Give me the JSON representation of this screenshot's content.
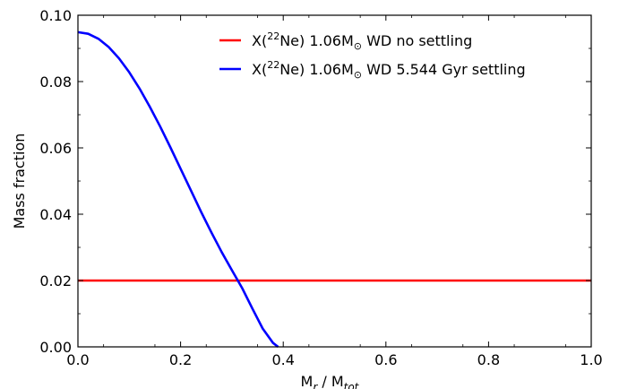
{
  "chart_data": {
    "type": "line",
    "title": "",
    "xlabel": {
      "main": "M",
      "sub1": "r",
      "sep": " / M",
      "sub2": "tot"
    },
    "ylabel": "Mass fraction",
    "xlim": [
      0.0,
      1.0
    ],
    "ylim": [
      0.0,
      0.1
    ],
    "xticks": [
      "0.0",
      "0.2",
      "0.4",
      "0.6",
      "0.8",
      "1.0"
    ],
    "yticks": [
      "0.00",
      "0.02",
      "0.04",
      "0.06",
      "0.08",
      "0.10"
    ],
    "grid": false,
    "legend_position": "top-right",
    "series": [
      {
        "name": "X(22Ne) 1.06M⊙ WD no settling",
        "legend": {
          "pre": "X(",
          "sup": "22",
          "mid": "Ne) 1.06M",
          "sym": "⊙",
          "post": " WD no settling"
        },
        "color": "#ff0000",
        "x": [
          0.0,
          1.0
        ],
        "y": [
          0.02,
          0.02
        ]
      },
      {
        "name": "X(22Ne) 1.06M⊙ WD 5.544 Gyr settling",
        "legend": {
          "pre": "X(",
          "sup": "22",
          "mid": "Ne) 1.06M",
          "sym": "⊙",
          "post": " WD 5.544 Gyr settling"
        },
        "color": "#0000ff",
        "x": [
          0.0,
          0.02,
          0.04,
          0.06,
          0.08,
          0.1,
          0.12,
          0.14,
          0.16,
          0.18,
          0.2,
          0.22,
          0.24,
          0.26,
          0.28,
          0.3,
          0.32,
          0.34,
          0.36,
          0.38,
          0.39
        ],
        "y": [
          0.0949,
          0.0944,
          0.0929,
          0.0904,
          0.087,
          0.0828,
          0.0779,
          0.0724,
          0.0665,
          0.0602,
          0.0537,
          0.0472,
          0.0407,
          0.0345,
          0.0286,
          0.0231,
          0.0177,
          0.0115,
          0.0055,
          0.0012,
          0.0
        ]
      }
    ]
  }
}
